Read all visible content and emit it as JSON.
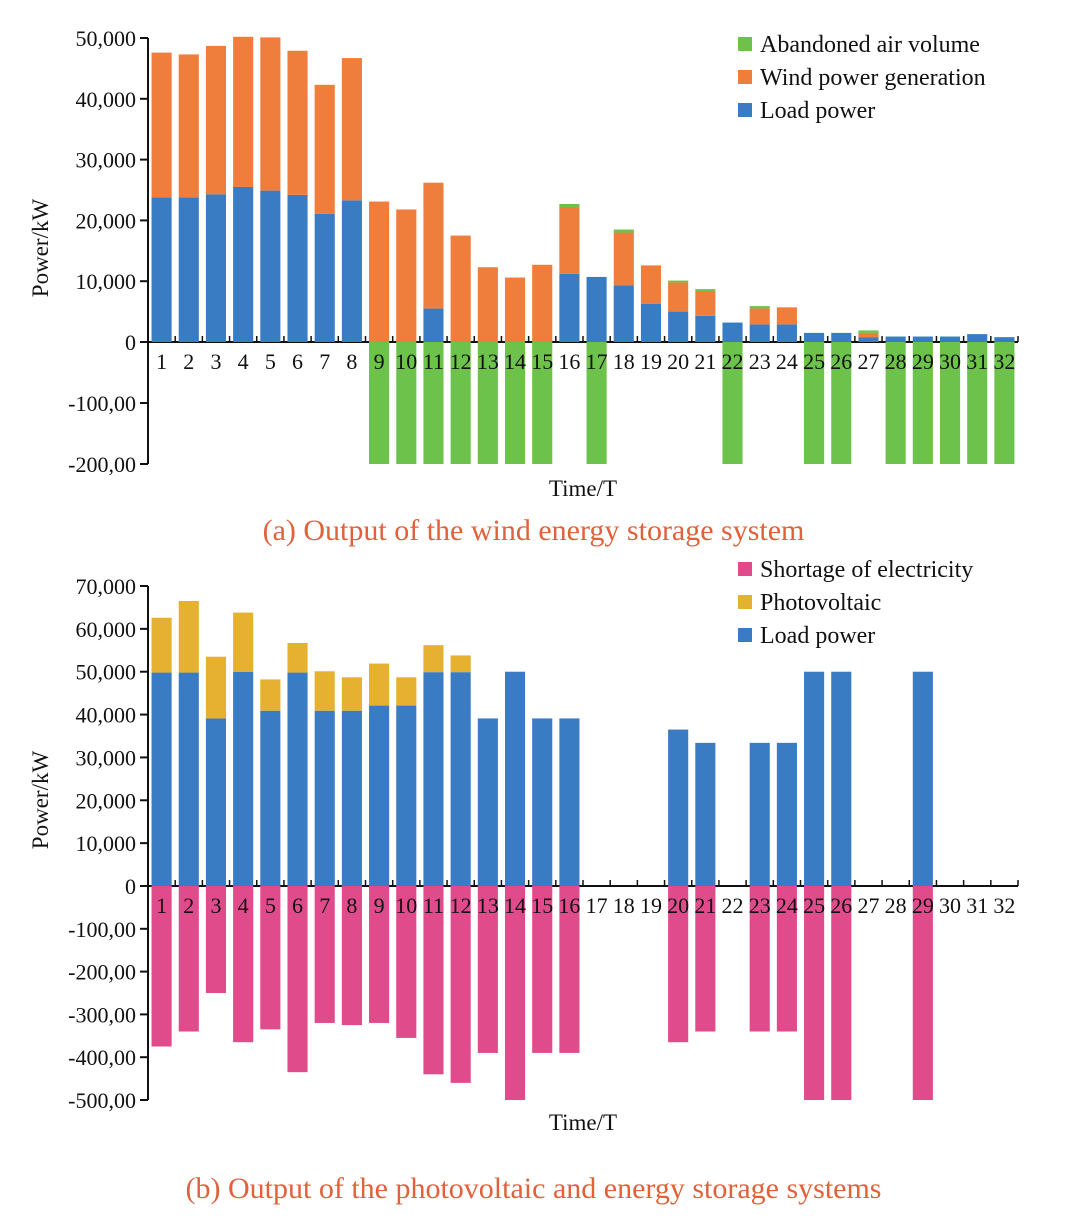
{
  "chart_data": [
    {
      "type": "bar",
      "stacked": true,
      "title": "(a) Output of the wind energy storage system",
      "xlabel": "Time/T",
      "ylabel": "Power/kW",
      "categories": [
        "1",
        "2",
        "3",
        "4",
        "5",
        "6",
        "7",
        "8",
        "9",
        "10",
        "11",
        "12",
        "13",
        "14",
        "15",
        "16",
        "17",
        "18",
        "19",
        "20",
        "21",
        "22",
        "23",
        "24",
        "25",
        "26",
        "27",
        "28",
        "29",
        "30",
        "31",
        "32"
      ],
      "ylim": [
        -200,
        50000
      ],
      "yticks": [
        50000,
        40000,
        30000,
        20000,
        10000,
        0,
        -100,
        -200
      ],
      "ytick_labels": [
        "50,000",
        "40,000",
        "30,000",
        "20,000",
        "10,000",
        "0",
        "-100,00",
        "-200,00"
      ],
      "legend_position": "top-right",
      "series": [
        {
          "name": "Abandoned air volume",
          "color": "#6cc24a",
          "values": [
            0,
            0,
            0,
            0,
            0,
            0,
            0,
            0,
            -200,
            -200,
            -200,
            -200,
            -200,
            -200,
            -200,
            500,
            -200,
            500,
            0,
            300,
            300,
            -200,
            400,
            0,
            -200,
            -200,
            400,
            -200,
            -200,
            -200,
            -200,
            -200
          ]
        },
        {
          "name": "Wind power generation",
          "color": "#ef7d3c",
          "values": [
            23800,
            23500,
            24400,
            24700,
            25200,
            23700,
            21200,
            23400,
            23100,
            21800,
            20700,
            17500,
            12300,
            10600,
            12700,
            11000,
            0,
            8700,
            6300,
            4800,
            4100,
            0,
            2600,
            2800,
            0,
            0,
            700,
            0,
            0,
            0,
            0,
            0
          ]
        },
        {
          "name": "Load power",
          "color": "#3a7cc4",
          "values": [
            23800,
            23800,
            24300,
            25500,
            24900,
            24200,
            21100,
            23300,
            0,
            0,
            5500,
            0,
            0,
            0,
            0,
            11200,
            10700,
            9300,
            6300,
            5000,
            4300,
            3200,
            2900,
            2900,
            1500,
            1500,
            800,
            900,
            900,
            900,
            1300,
            800
          ]
        }
      ]
    },
    {
      "type": "bar",
      "stacked": true,
      "title": "(b) Output of the photovoltaic and energy storage systems",
      "xlabel": "Time/T",
      "ylabel": "Power/kW",
      "categories": [
        "1",
        "2",
        "3",
        "4",
        "5",
        "6",
        "7",
        "8",
        "9",
        "10",
        "11",
        "12",
        "13",
        "14",
        "15",
        "16",
        "17",
        "18",
        "19",
        "20",
        "21",
        "22",
        "23",
        "24",
        "25",
        "26",
        "27",
        "28",
        "29",
        "30",
        "31",
        "32"
      ],
      "ylim": [
        -500,
        70000
      ],
      "yticks": [
        70000,
        60000,
        50000,
        40000,
        30000,
        20000,
        10000,
        0,
        -100,
        -200,
        -300,
        -400,
        -500
      ],
      "ytick_labels": [
        "70,000",
        "60,000",
        "50,000",
        "40,000",
        "30,000",
        "20,000",
        "10,000",
        "0",
        "-100,00",
        "-200,00",
        "-300,00",
        "-400,00",
        "-500,00"
      ],
      "legend_position": "top-right",
      "series": [
        {
          "name": "Shortage of electricity",
          "color": "#e04b8c",
          "values": [
            -375,
            -340,
            -250,
            -365,
            -335,
            -435,
            -320,
            -325,
            -320,
            -355,
            -440,
            -460,
            -390,
            -500,
            -390,
            -390,
            0,
            0,
            0,
            -365,
            -340,
            0,
            -340,
            -340,
            -500,
            -500,
            0,
            0,
            -500,
            0,
            0,
            0
          ]
        },
        {
          "name": "Photovoltaic",
          "color": "#e6b030",
          "values": [
            12800,
            16700,
            14400,
            13800,
            7300,
            6900,
            9200,
            7800,
            9800,
            6600,
            6300,
            3900,
            0,
            0,
            0,
            0,
            0,
            0,
            0,
            0,
            0,
            0,
            0,
            0,
            0,
            0,
            0,
            0,
            0,
            0,
            0,
            0
          ]
        },
        {
          "name": "Load power",
          "color": "#3a7cc4",
          "values": [
            49800,
            49800,
            39100,
            50000,
            40900,
            49800,
            40900,
            40900,
            42100,
            42100,
            49900,
            49900,
            39100,
            50000,
            39100,
            39100,
            0,
            0,
            0,
            36500,
            33400,
            0,
            33400,
            33400,
            50000,
            50000,
            0,
            0,
            50000,
            0,
            0,
            0
          ]
        }
      ]
    }
  ]
}
